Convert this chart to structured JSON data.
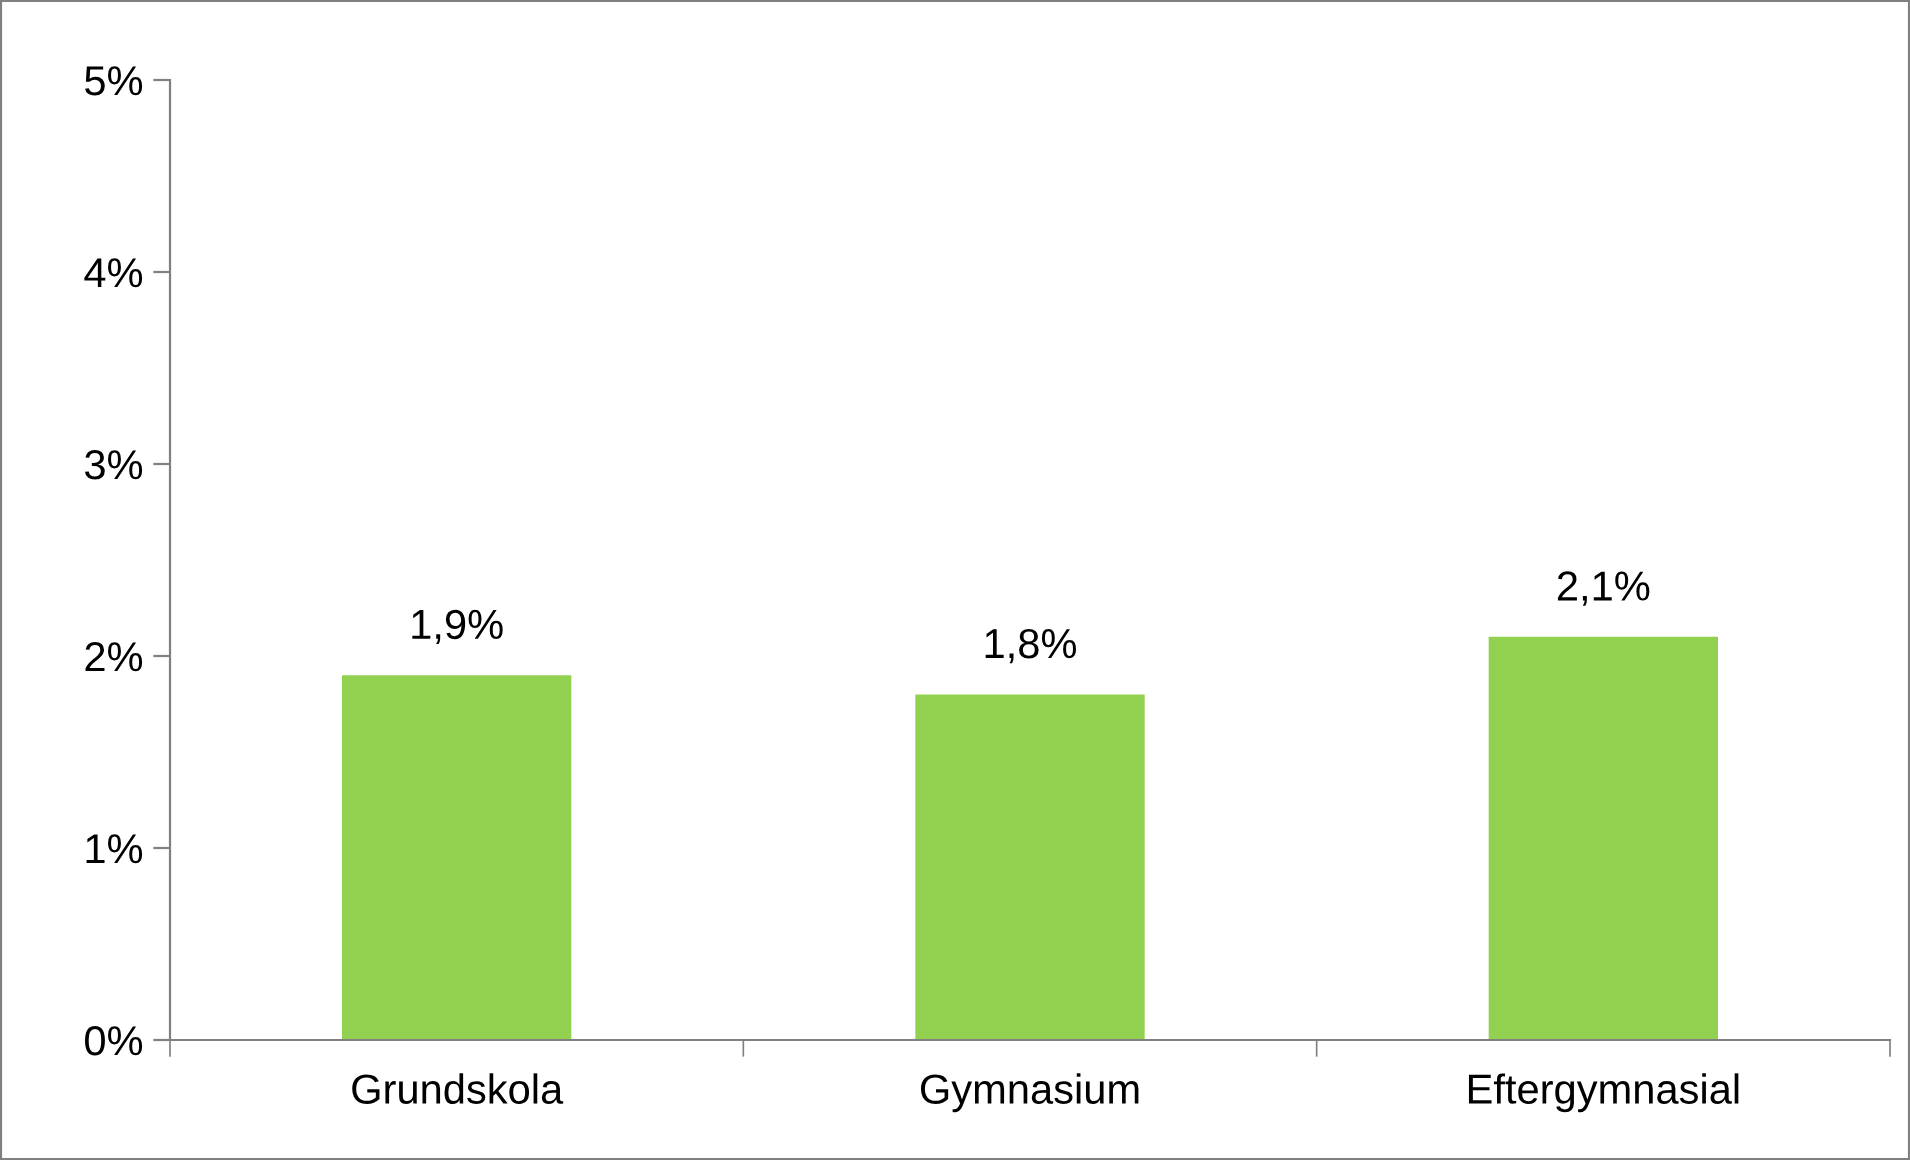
{
  "chart_data": {
    "type": "bar",
    "categories": [
      "Grundskola",
      "Gymnasium",
      "Eftergymnasial"
    ],
    "values": [
      1.9,
      1.8,
      2.1
    ],
    "color": "#92d050",
    "value_labels": [
      "1,9%",
      "1,8%",
      "2,1%"
    ],
    "ylim": [
      0,
      5
    ],
    "yticks": [
      {
        "value": 0,
        "label": "0%"
      },
      {
        "value": 1,
        "label": "1%"
      },
      {
        "value": 2,
        "label": "2%"
      },
      {
        "value": 3,
        "label": "3%"
      },
      {
        "value": 4,
        "label": "4%"
      },
      {
        "value": 5,
        "label": "5%"
      }
    ],
    "grid": false,
    "legend": false
  }
}
